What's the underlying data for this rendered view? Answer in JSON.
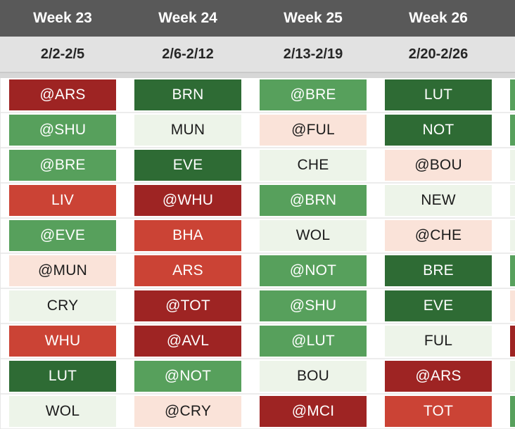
{
  "ticker": {
    "weeks": [
      {
        "label": "Week 23",
        "dates": "2/2-2/5"
      },
      {
        "label": "Week 24",
        "dates": "2/6-2/12"
      },
      {
        "label": "Week 25",
        "dates": "2/13-2/19"
      },
      {
        "label": "Week 26",
        "dates": "2/20-2/26"
      },
      {
        "label": "",
        "dates": ""
      }
    ],
    "fixtures": [
      [
        {
          "opponent": "@ARS",
          "difficulty": "darkred"
        },
        {
          "opponent": "BRN",
          "difficulty": "darkgreen"
        },
        {
          "opponent": "@BRE",
          "difficulty": "green"
        },
        {
          "opponent": "LUT",
          "difficulty": "darkgreen"
        },
        {
          "opponent": "",
          "difficulty": "green"
        }
      ],
      [
        {
          "opponent": "@SHU",
          "difficulty": "green"
        },
        {
          "opponent": "MUN",
          "difficulty": "lightgreen"
        },
        {
          "opponent": "@FUL",
          "difficulty": "lightpink"
        },
        {
          "opponent": "NOT",
          "difficulty": "darkgreen"
        },
        {
          "opponent": "",
          "difficulty": "green"
        }
      ],
      [
        {
          "opponent": "@BRE",
          "difficulty": "green"
        },
        {
          "opponent": "EVE",
          "difficulty": "darkgreen"
        },
        {
          "opponent": "CHE",
          "difficulty": "lightgreen"
        },
        {
          "opponent": "@BOU",
          "difficulty": "lightpink"
        },
        {
          "opponent": "",
          "difficulty": "lightgreen"
        }
      ],
      [
        {
          "opponent": "LIV",
          "difficulty": "red"
        },
        {
          "opponent": "@WHU",
          "difficulty": "darkred"
        },
        {
          "opponent": "@BRN",
          "difficulty": "green"
        },
        {
          "opponent": "NEW",
          "difficulty": "lightgreen"
        },
        {
          "opponent": "",
          "difficulty": "lightgreen"
        }
      ],
      [
        {
          "opponent": "@EVE",
          "difficulty": "green"
        },
        {
          "opponent": "BHA",
          "difficulty": "red"
        },
        {
          "opponent": "WOL",
          "difficulty": "lightgreen"
        },
        {
          "opponent": "@CHE",
          "difficulty": "lightpink"
        },
        {
          "opponent": "",
          "difficulty": "lightgreen"
        }
      ],
      [
        {
          "opponent": "@MUN",
          "difficulty": "lightpink"
        },
        {
          "opponent": "ARS",
          "difficulty": "red"
        },
        {
          "opponent": "@NOT",
          "difficulty": "green"
        },
        {
          "opponent": "BRE",
          "difficulty": "darkgreen"
        },
        {
          "opponent": "",
          "difficulty": "green"
        }
      ],
      [
        {
          "opponent": "CRY",
          "difficulty": "lightgreen"
        },
        {
          "opponent": "@TOT",
          "difficulty": "darkred"
        },
        {
          "opponent": "@SHU",
          "difficulty": "green"
        },
        {
          "opponent": "EVE",
          "difficulty": "darkgreen"
        },
        {
          "opponent": "",
          "difficulty": "lightpink"
        }
      ],
      [
        {
          "opponent": "WHU",
          "difficulty": "red"
        },
        {
          "opponent": "@AVL",
          "difficulty": "darkred"
        },
        {
          "opponent": "@LUT",
          "difficulty": "green"
        },
        {
          "opponent": "FUL",
          "difficulty": "lightgreen"
        },
        {
          "opponent": "",
          "difficulty": "darkred"
        }
      ],
      [
        {
          "opponent": "LUT",
          "difficulty": "darkgreen"
        },
        {
          "opponent": "@NOT",
          "difficulty": "green"
        },
        {
          "opponent": "BOU",
          "difficulty": "lightgreen"
        },
        {
          "opponent": "@ARS",
          "difficulty": "darkred"
        },
        {
          "opponent": "",
          "difficulty": "lightgreen"
        }
      ],
      [
        {
          "opponent": "WOL",
          "difficulty": "lightgreen"
        },
        {
          "opponent": "@CRY",
          "difficulty": "lightpink"
        },
        {
          "opponent": "@MCI",
          "difficulty": "darkred"
        },
        {
          "opponent": "TOT",
          "difficulty": "red"
        },
        {
          "opponent": "",
          "difficulty": "green"
        }
      ]
    ]
  },
  "colors": {
    "header_bg": "#595959",
    "header_text": "#ffffff",
    "date_bg": "#e2e2e2",
    "date_text": "#262626",
    "separator": "#d7d7d7",
    "row_line": "#ececec",
    "text_on_dark": "#ffffff",
    "text_on_light": "#1c1c1c",
    "difficulty": {
      "darkgreen": "#2e6b34",
      "green": "#57a05c",
      "lightgreen": "#edf4e9",
      "lightpink": "#fae3d9",
      "red": "#cb4335",
      "darkred": "#9e2423"
    }
  }
}
